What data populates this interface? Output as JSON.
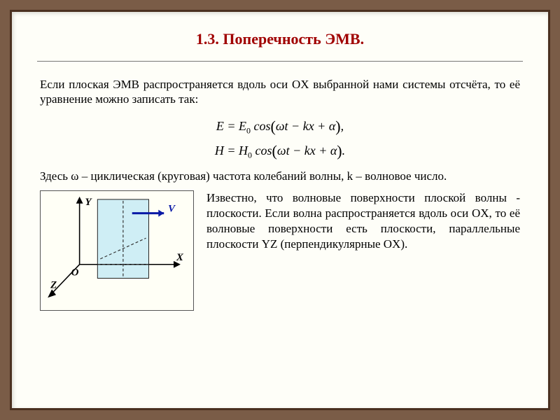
{
  "title": "1.3. Поперечность ЭМВ.",
  "intro": "Если плоская ЭМВ распространяется вдоль оси OX выбранной нами системы отсчёта, то её уравнение можно записать так:",
  "equations": {
    "line1_html": "E = E<span class='sub'>0</span> cos<span class='paren'>(</span>&omega;t &minus; kx + &alpha;<span class='paren'>)</span>,",
    "line2_html": "H = H<span class='sub'>0</span> cos<span class='paren'>(</span>&omega;t &minus; kx + &alpha;<span class='paren'>)</span>."
  },
  "para2": "Здесь ω – циклическая (круговая) частота колебаний волны, k – волновое число.",
  "right_text": "Известно, что волновые поверхности плоской волны - плоскости. Если волна распространяется вдоль оси OX, то её волновые поверхности есть плоскости, параллельные плоскости YZ (перпендикулярные OX).",
  "diagram": {
    "labels": {
      "Y": "Y",
      "X": "X",
      "Z": "Z",
      "O": "O",
      "V": "V"
    },
    "colors": {
      "plane_fill": "#cfeef5",
      "plane_stroke": "#222",
      "axis": "#000000",
      "dashed": "#333333",
      "v_arrow": "#0a1aa6",
      "background": "#fffff6"
    },
    "font_size_axes": 15,
    "line_width_axis": 1.6,
    "line_width_dash": 1.2,
    "dash_pattern": "4 3"
  },
  "styling": {
    "page_bg": "#7a5c47",
    "slide_bg": "#fefef8",
    "slide_border": "#4a3020",
    "title_color": "#a00000",
    "title_fontsize": 22,
    "body_fontsize": 17,
    "eq_fontsize": 18,
    "hr_color": "#777777"
  }
}
